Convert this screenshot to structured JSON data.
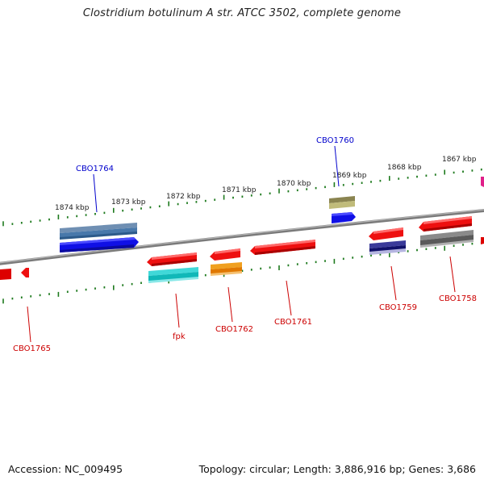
{
  "title": "Clostridium botulinum A str. ATCC 3502, complete genome",
  "footer": {
    "accession": "Accession: NC_009495",
    "summary": "Topology: circular; Length: 3,886,916 bp; Genes: 3,686"
  },
  "scale_labels": [
    "1874 kbp",
    "1873 kbp",
    "1872 kbp",
    "1871 kbp",
    "1870 kbp",
    "1869 kbp",
    "1868 kbp",
    "1867 kbp"
  ],
  "gene_labels": {
    "cbo1764": "CBO1764",
    "cbo1760": "CBO1760",
    "cbo1765": "CBO1765",
    "fpk": "fpk",
    "cbo1762": "CBO1762",
    "cbo1761": "CBO1761",
    "cbo1759": "CBO1759",
    "cbo1758": "CBO1758"
  },
  "colors": {
    "forward_label": "#0000cc",
    "reverse_label": "#cc0000",
    "backbone": "#808080",
    "tick": "#1e7a1e"
  }
}
